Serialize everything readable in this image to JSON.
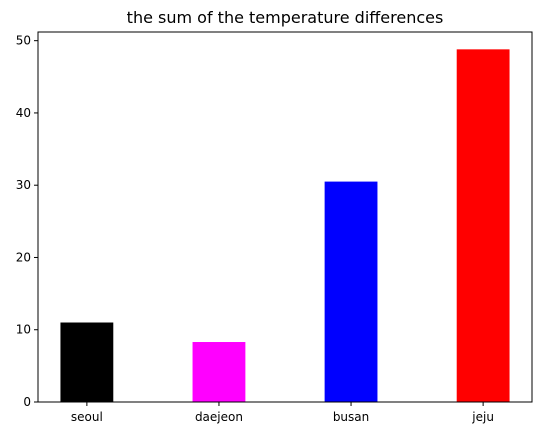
{
  "chart_data": {
    "type": "bar",
    "title": "the sum of the temperature differences",
    "xlabel": "",
    "ylabel": "",
    "categories": [
      "seoul",
      "daejeon",
      "busan",
      "jeju"
    ],
    "values": [
      11.0,
      8.3,
      30.5,
      48.8
    ],
    "bar_colors": [
      "#000000",
      "#ff00ff",
      "#0000ff",
      "#ff0000"
    ],
    "ylim": [
      0,
      51.2
    ],
    "yticks": [
      0,
      10,
      20,
      30,
      40,
      50
    ],
    "grid": false,
    "legend": "none"
  }
}
